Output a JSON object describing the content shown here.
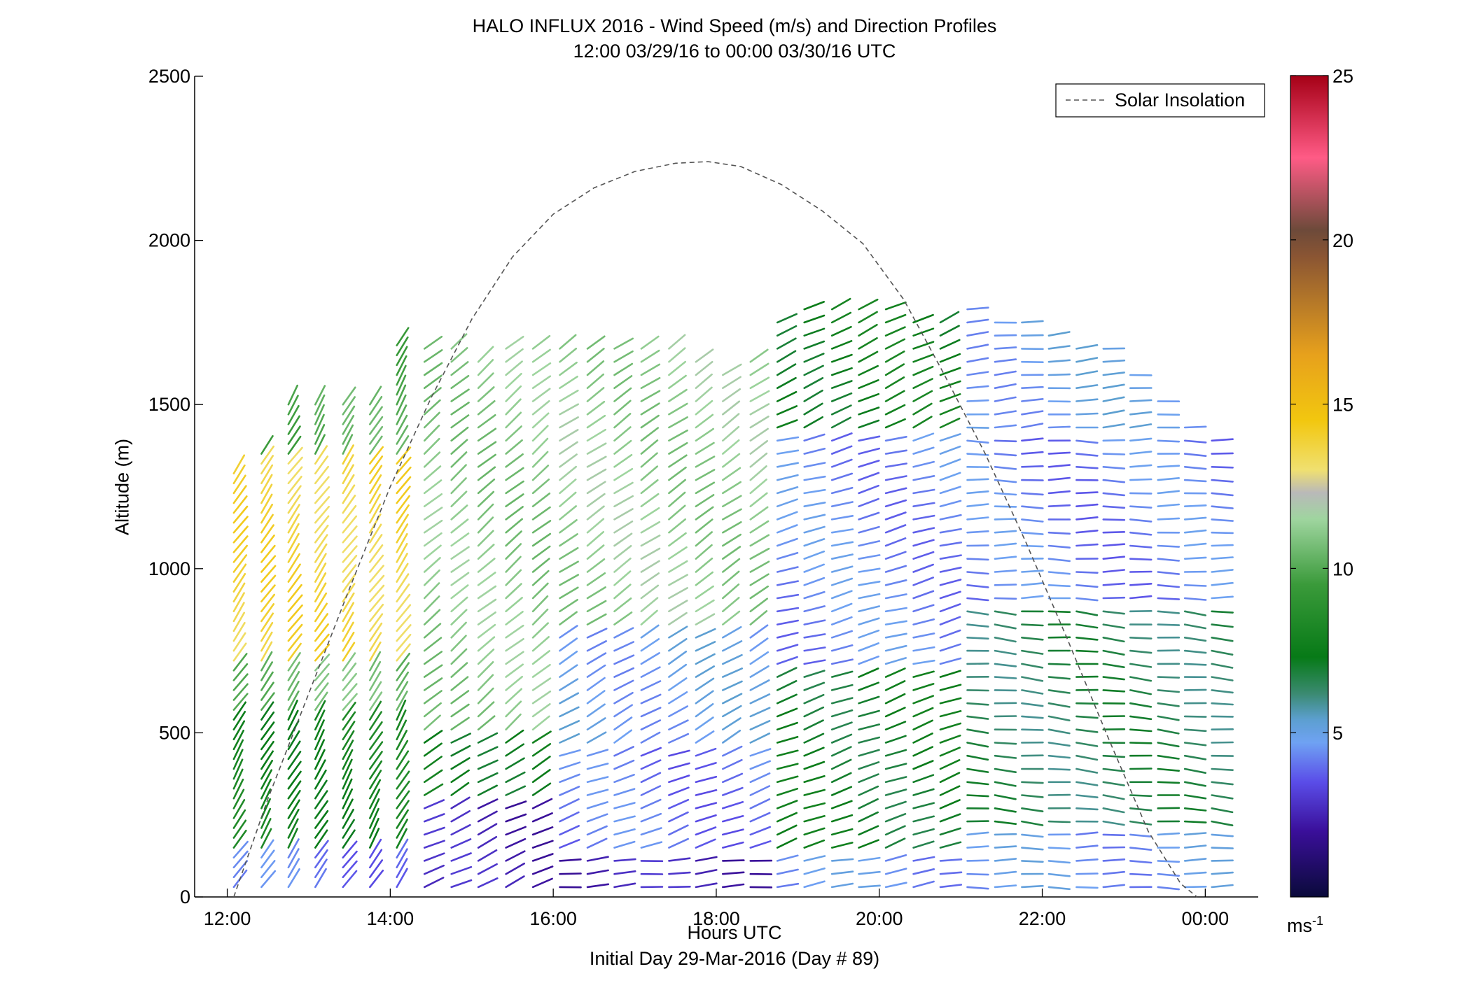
{
  "figure": {
    "title_line1": "HALO INFLUX 2016 - Wind Speed (m/s) and Direction Profiles",
    "title_line2": "12:00 03/29/16 to 00:00 03/30/16  UTC",
    "xlabel": "Hours UTC",
    "footer": "Initial Day 29-Mar-2016 (Day # 89)",
    "ylabel": "Altitude (m)",
    "colorbar_unit": "ms",
    "colorbar_unit_exp": "-1"
  },
  "chart_data": {
    "type": "wind-barb profile (scatter of direction sticks colored by speed)",
    "x_unit": "hours UTC",
    "xlim": [
      11.6,
      24.65
    ],
    "ylim": [
      0,
      2500
    ],
    "xticks": [
      {
        "value": 12,
        "label": "12:00"
      },
      {
        "value": 14,
        "label": "14:00"
      },
      {
        "value": 16,
        "label": "16:00"
      },
      {
        "value": 18,
        "label": "18:00"
      },
      {
        "value": 20,
        "label": "20:00"
      },
      {
        "value": 22,
        "label": "22:00"
      },
      {
        "value": 24,
        "label": "00:00"
      }
    ],
    "yticks": [
      {
        "value": 0,
        "label": "0"
      },
      {
        "value": 500,
        "label": "500"
      },
      {
        "value": 1000,
        "label": "1000"
      },
      {
        "value": 1500,
        "label": "1500"
      },
      {
        "value": 2000,
        "label": "2000"
      },
      {
        "value": 2500,
        "label": "2500"
      }
    ],
    "grid": false,
    "legend": {
      "position": "top-right",
      "entries": [
        {
          "label": "Solar Insolation",
          "style": "dashed",
          "color": "#555555"
        }
      ]
    },
    "solar_insolation": {
      "x": [
        12.08,
        12.5,
        13.0,
        13.5,
        14.0,
        14.5,
        15.0,
        15.5,
        16.0,
        16.5,
        17.0,
        17.5,
        17.9,
        18.3,
        18.8,
        19.3,
        19.8,
        20.3,
        20.8,
        21.3,
        21.8,
        22.3,
        22.8,
        23.3,
        23.7,
        23.9
      ],
      "y": [
        0,
        300,
        620,
        940,
        1250,
        1520,
        1760,
        1950,
        2080,
        2160,
        2210,
        2235,
        2240,
        2225,
        2170,
        2090,
        1990,
        1820,
        1590,
        1350,
        1080,
        790,
        490,
        200,
        40,
        0
      ]
    },
    "colorbar": {
      "range": [
        0,
        25
      ],
      "ticks": [
        5,
        10,
        15,
        20,
        25
      ],
      "stops": [
        {
          "v": 0,
          "c": "#0a0a3a"
        },
        {
          "v": 2,
          "c": "#3a0f9a"
        },
        {
          "v": 3.5,
          "c": "#5a4de8"
        },
        {
          "v": 4.7,
          "c": "#6fa2f3"
        },
        {
          "v": 5.4,
          "c": "#5c9fd0"
        },
        {
          "v": 6.2,
          "c": "#3a8a70"
        },
        {
          "v": 7.3,
          "c": "#077a17"
        },
        {
          "v": 9.5,
          "c": "#3a9a3a"
        },
        {
          "v": 11.5,
          "c": "#9fd59f"
        },
        {
          "v": 12.3,
          "c": "#b9b9b9"
        },
        {
          "v": 13.0,
          "c": "#f0e070"
        },
        {
          "v": 14.5,
          "c": "#f2c70f"
        },
        {
          "v": 16.5,
          "c": "#e7a11c"
        },
        {
          "v": 19.5,
          "c": "#8a5533"
        },
        {
          "v": 20.3,
          "c": "#6d4a3a"
        },
        {
          "v": 22.5,
          "c": "#ff5b86"
        },
        {
          "v": 25,
          "c": "#a50016"
        }
      ]
    },
    "profile_times": [
      12.08,
      12.42,
      12.75,
      13.08,
      13.42,
      13.75,
      14.08,
      14.42,
      14.75,
      15.08,
      15.42,
      15.75,
      16.08,
      16.42,
      16.75,
      17.08,
      17.42,
      17.75,
      18.08,
      18.42,
      18.75,
      19.08,
      19.42,
      19.75,
      20.08,
      20.42,
      20.75,
      21.08,
      21.42,
      21.75,
      22.08,
      22.42,
      22.75,
      23.08,
      23.42,
      23.75,
      24.08
    ],
    "profile_tops_m": [
      1300,
      1350,
      1500,
      1500,
      1500,
      1500,
      1700,
      1700,
      1700,
      1650,
      1680,
      1700,
      1700,
      1700,
      1700,
      1700,
      1700,
      1650,
      1600,
      1650,
      1760,
      1800,
      1800,
      1820,
      1800,
      1780,
      1780,
      1800,
      1780,
      1760,
      1740,
      1680,
      1680,
      1600,
      1540,
      1430,
      1400
    ],
    "regimes": [
      {
        "t0": 12.0,
        "t1": 14.2,
        "layers": [
          {
            "y0": 0,
            "y1": 150,
            "speed": 4.0,
            "dir_deg": 35
          },
          {
            "y0": 150,
            "y1": 550,
            "speed": 7.8,
            "dir_deg": 30
          },
          {
            "y0": 550,
            "y1": 700,
            "speed": 10.5,
            "dir_deg": 35
          },
          {
            "y0": 700,
            "y1": 1350,
            "speed": 13.7,
            "dir_deg": 35
          },
          {
            "y0": 1350,
            "y1": 1800,
            "speed": 10.0,
            "dir_deg": 30
          }
        ]
      },
      {
        "t0": 14.2,
        "t1": 16.0,
        "layers": [
          {
            "y0": 0,
            "y1": 300,
            "speed": 2.5,
            "dir_deg": 65
          },
          {
            "y0": 300,
            "y1": 500,
            "speed": 7.5,
            "dir_deg": 60
          },
          {
            "y0": 500,
            "y1": 1700,
            "speed": 11.0,
            "dir_deg": 50
          }
        ]
      },
      {
        "t0": 16.0,
        "t1": 18.5,
        "layers": [
          {
            "y0": 0,
            "y1": 120,
            "speed": 2.5,
            "dir_deg": 85
          },
          {
            "y0": 120,
            "y1": 450,
            "speed": 4.0,
            "dir_deg": 70
          },
          {
            "y0": 450,
            "y1": 800,
            "speed": 4.8,
            "dir_deg": 60
          },
          {
            "y0": 800,
            "y1": 1700,
            "speed": 11.2,
            "dir_deg": 55
          }
        ]
      },
      {
        "t0": 18.5,
        "t1": 21.0,
        "layers": [
          {
            "y0": 0,
            "y1": 150,
            "speed": 4.5,
            "dir_deg": 80
          },
          {
            "y0": 150,
            "y1": 700,
            "speed": 7.2,
            "dir_deg": 70
          },
          {
            "y0": 700,
            "y1": 1400,
            "speed": 4.3,
            "dir_deg": 75
          },
          {
            "y0": 1400,
            "y1": 1800,
            "speed": 7.5,
            "dir_deg": 65
          }
        ]
      },
      {
        "t0": 21.0,
        "t1": 24.2,
        "layers": [
          {
            "y0": 0,
            "y1": 200,
            "speed": 4.6,
            "dir_deg": 90
          },
          {
            "y0": 200,
            "y1": 900,
            "speed": 6.5,
            "dir_deg": 95
          },
          {
            "y0": 900,
            "y1": 1400,
            "speed": 4.2,
            "dir_deg": 90
          },
          {
            "y0": 1400,
            "y1": 1700,
            "speed": 4.8,
            "dir_deg": 85
          }
        ]
      }
    ]
  }
}
